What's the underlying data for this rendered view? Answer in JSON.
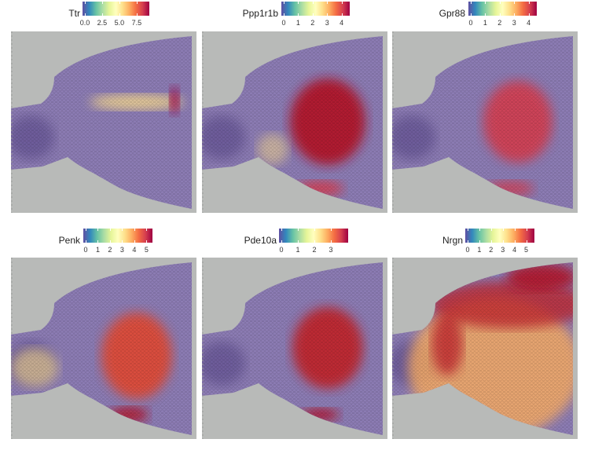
{
  "chart_data": [
    {
      "type": "heatmap",
      "subtype": "spatial-feature-plot",
      "feature": "Ttr",
      "legend_ticks": [
        "0.0",
        "2.5",
        "5.0",
        "7.5"
      ],
      "range": [
        0,
        9
      ],
      "pattern": "high expression in a narrow band/choroid plexus region (right-centre)"
    },
    {
      "type": "heatmap",
      "subtype": "spatial-feature-plot",
      "feature": "Ppp1r1b",
      "legend_ticks": [
        "0",
        "1",
        "2",
        "3",
        "4"
      ],
      "range": [
        0,
        4.4
      ],
      "pattern": "high expression in striatum"
    },
    {
      "type": "heatmap",
      "subtype": "spatial-feature-plot",
      "feature": "Gpr88",
      "legend_ticks": [
        "0",
        "1",
        "2",
        "3",
        "4"
      ],
      "range": [
        0,
        4.4
      ],
      "pattern": "high expression in striatum"
    },
    {
      "type": "heatmap",
      "subtype": "spatial-feature-plot",
      "feature": "Penk",
      "legend_ticks": [
        "0",
        "1",
        "2",
        "3",
        "4",
        "5"
      ],
      "range": [
        0,
        5.3
      ],
      "pattern": "high expression in striatum"
    },
    {
      "type": "heatmap",
      "subtype": "spatial-feature-plot",
      "feature": "Pde10a",
      "legend_ticks": [
        "0",
        "1",
        "2",
        "3"
      ],
      "range": [
        0,
        3.9
      ],
      "pattern": "high expression in striatum"
    },
    {
      "type": "heatmap",
      "subtype": "spatial-feature-plot",
      "feature": "Nrgn",
      "legend_ticks": [
        "0",
        "1",
        "2",
        "3",
        "4",
        "5"
      ],
      "range": [
        0,
        5.5
      ],
      "pattern": "broad expression, highest in cortex"
    }
  ],
  "colors": {
    "low": "#5e4fa2",
    "mid": "#ffffbf",
    "high": "#9e0142",
    "background": "#b8bab8",
    "tissue": "#8a78b0"
  }
}
